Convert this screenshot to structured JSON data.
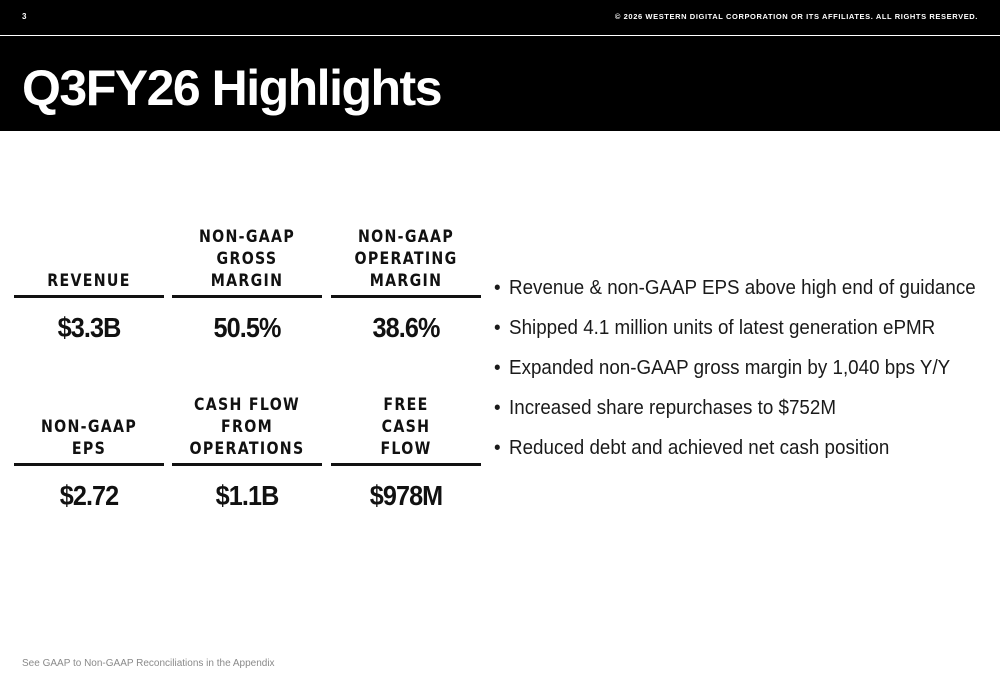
{
  "header": {
    "page_number": "3",
    "copyright": "© 2026 WESTERN DIGITAL CORPORATION OR ITS AFFILIATES. ALL RIGHTS RESERVED.",
    "title": "Q3FY26 Highlights"
  },
  "metrics_row1": [
    {
      "label_lines": [
        "REVENUE"
      ],
      "value": "$3.3B"
    },
    {
      "label_lines": [
        "NON-GAAP",
        "GROSS",
        "MARGIN"
      ],
      "value": "50.5%"
    },
    {
      "label_lines": [
        "NON-GAAP",
        "OPERATING",
        "MARGIN"
      ],
      "value": "38.6%"
    }
  ],
  "metrics_row2": [
    {
      "label_lines": [
        "NON-GAAP",
        "EPS"
      ],
      "value": "$2.72"
    },
    {
      "label_lines": [
        "CASH FLOW",
        "FROM",
        "OPERATIONS"
      ],
      "value": "$1.1B"
    },
    {
      "label_lines": [
        "FREE",
        "CASH",
        "FLOW"
      ],
      "value": "$978M"
    }
  ],
  "bullets": [
    "Revenue & non-GAAP EPS above high end of guidance",
    "Shipped 4.1 million units of latest generation ePMR",
    "Expanded non-GAAP gross margin by 1,040 bps Y/Y",
    "Increased share repurchases to $752M",
    "Reduced debt and achieved net cash position"
  ],
  "footnote": "See GAAP to Non-GAAP Reconciliations in the Appendix"
}
